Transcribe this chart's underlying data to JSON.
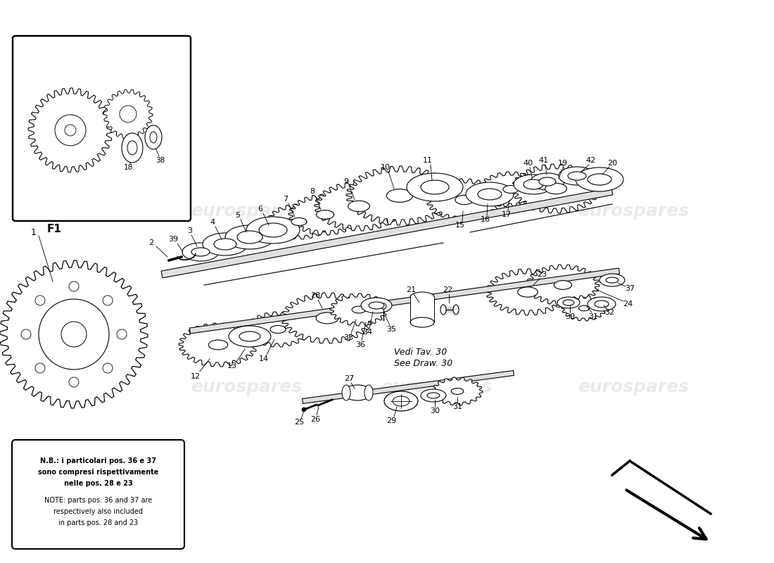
{
  "bg_color": "#ffffff",
  "watermark_text": "eurospares",
  "note_italian": [
    "N.B.: i particolari pos. 36 e 37",
    "sono compresi rispettivamente",
    "nelle pos. 28 e 23"
  ],
  "note_english": [
    "NOTE: parts pos. 36 and 37 are",
    "respectively also included",
    "in parts pos. 28 and 23"
  ],
  "see_draw": [
    "Vedi Tav. 30",
    "See Draw. 30"
  ],
  "f1_label": "F1"
}
